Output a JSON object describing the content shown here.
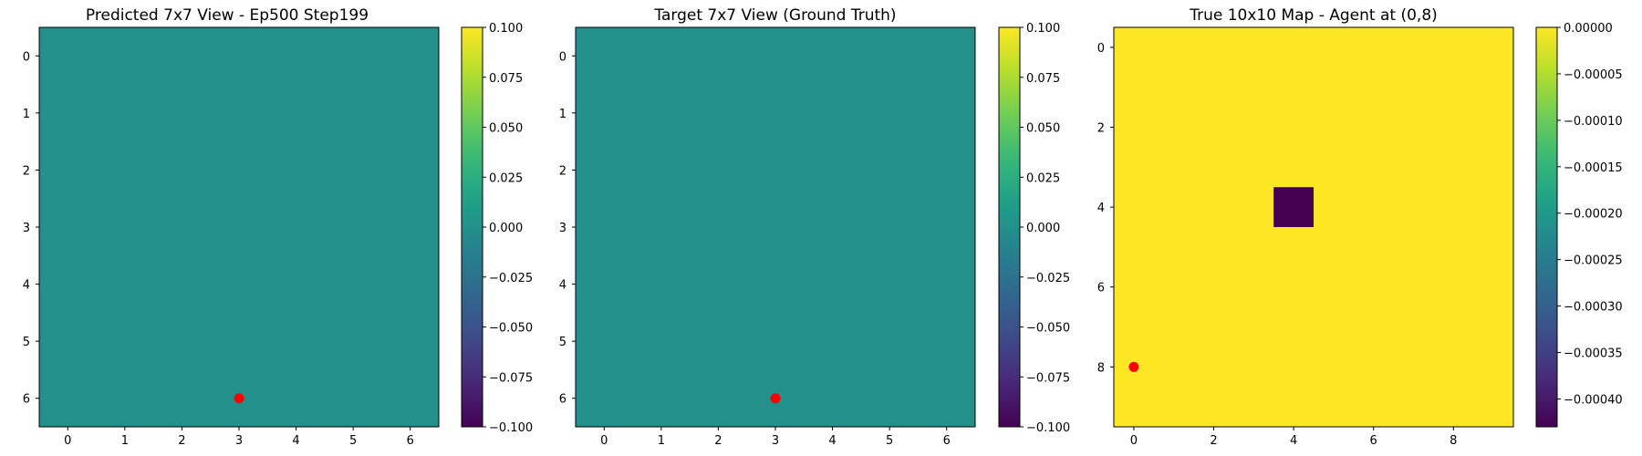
{
  "chart_data": [
    {
      "type": "heatmap",
      "title": "Predicted 7x7 View - Ep500 Step199",
      "grid_size": 7,
      "xticks": [
        0,
        1,
        2,
        3,
        4,
        5,
        6
      ],
      "yticks": [
        0,
        1,
        2,
        3,
        4,
        5,
        6
      ],
      "fill_value": 0.0,
      "cells": [],
      "agent_marker": {
        "x": 3,
        "y": 6,
        "color": "#ff0000"
      },
      "colorbar": {
        "min": -0.1,
        "max": 0.1,
        "ticks": [
          0.1,
          0.075,
          0.05,
          0.025,
          0.0,
          -0.025,
          -0.05,
          -0.075,
          -0.1
        ],
        "tick_labels": [
          "0.100",
          "0.075",
          "0.050",
          "0.025",
          "0.000",
          "−0.025",
          "−0.050",
          "−0.075",
          "−0.100"
        ]
      }
    },
    {
      "type": "heatmap",
      "title": "Target 7x7 View (Ground Truth)",
      "grid_size": 7,
      "xticks": [
        0,
        1,
        2,
        3,
        4,
        5,
        6
      ],
      "yticks": [
        0,
        1,
        2,
        3,
        4,
        5,
        6
      ],
      "fill_value": 0.0,
      "cells": [],
      "agent_marker": {
        "x": 3,
        "y": 6,
        "color": "#ff0000"
      },
      "colorbar": {
        "min": -0.1,
        "max": 0.1,
        "ticks": [
          0.1,
          0.075,
          0.05,
          0.025,
          0.0,
          -0.025,
          -0.05,
          -0.075,
          -0.1
        ],
        "tick_labels": [
          "0.100",
          "0.075",
          "0.050",
          "0.025",
          "0.000",
          "−0.025",
          "−0.050",
          "−0.075",
          "−0.100"
        ]
      }
    },
    {
      "type": "heatmap",
      "title": "True 10x10 Map - Agent at (0,8)",
      "grid_size": 10,
      "xticks": [
        0,
        2,
        4,
        6,
        8
      ],
      "yticks": [
        0,
        2,
        4,
        6,
        8
      ],
      "fill_value": 0.0,
      "cells": [
        {
          "x": 4,
          "y": 4,
          "value": -0.00043
        }
      ],
      "agent_marker": {
        "x": 0,
        "y": 8,
        "color": "#ff0000"
      },
      "colorbar": {
        "min": -0.00043,
        "max": 0.0,
        "ticks": [
          0.0,
          -5e-05,
          -0.0001,
          -0.00015,
          -0.0002,
          -0.00025,
          -0.0003,
          -0.00035,
          -0.0004
        ],
        "tick_labels": [
          "0.00000",
          "−0.00005",
          "−0.00010",
          "−0.00015",
          "−0.00020",
          "−0.00025",
          "−0.00030",
          "−0.00035",
          "−0.00040"
        ]
      }
    }
  ]
}
